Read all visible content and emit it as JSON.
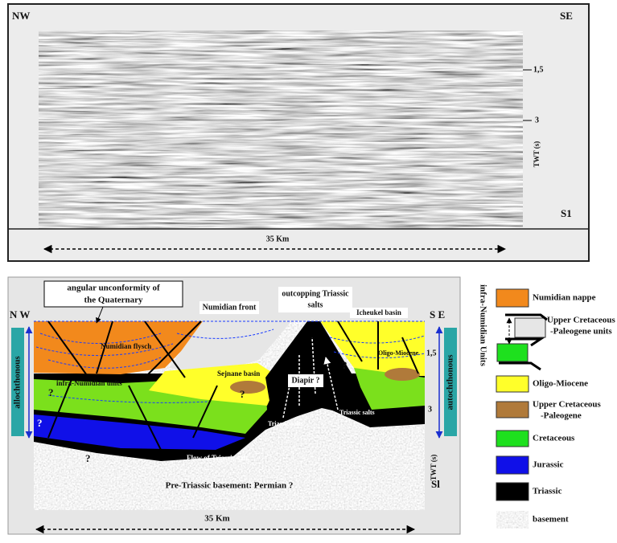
{
  "seismic_section": {
    "left_label": "NW",
    "right_label": "SE",
    "ticks": [
      "1,5",
      "3"
    ],
    "axis_label": "TWT (s)",
    "line_label": "S1",
    "scale_label": "35 Km"
  },
  "interpreted_section": {
    "left_label": "N W",
    "right_label": "S E",
    "ticks": [
      "1,5",
      "3"
    ],
    "axis_label": "TWT (s)",
    "line_label": "Sl",
    "scale_label": "35 Km",
    "left_bracket": "allochthonous",
    "right_bracket": "autochthonous",
    "callouts": [
      {
        "lines": [
          "angular unconformity of",
          "the Quaternary"
        ]
      },
      {
        "lines": [
          "Numidian front"
        ]
      },
      {
        "lines": [
          "outcopping Triassic",
          "salts"
        ]
      },
      {
        "lines": [
          "Icheukel basin"
        ]
      }
    ],
    "labels": [
      "Numidian flysch",
      "infra-Numidian units",
      "Sejnane basin",
      "Diapir ?",
      "Oligo-Miocene",
      "Triassic salts",
      "Triassic salts",
      "Flow of Triassic salt",
      "Pre-Triassic basement: Permian ?"
    ],
    "question_marks": [
      "?",
      "?",
      "?",
      "?",
      "?"
    ]
  },
  "legend": {
    "bracket_label": "infra-Numidian Units",
    "items": [
      {
        "lines": [
          "Numidian nappe"
        ]
      },
      {
        "lines": [
          "Upper Cretaceous",
          "-Paleogene units"
        ]
      },
      {
        "lines": [
          "Oligo-Miocene"
        ]
      },
      {
        "lines": [
          "Upper Cretaceous",
          "-Paleogene"
        ]
      },
      {
        "lines": [
          "Cretaceous"
        ]
      },
      {
        "lines": [
          "Jurassic"
        ]
      },
      {
        "lines": [
          "Triassic"
        ]
      },
      {
        "lines": [
          "basement"
        ]
      }
    ]
  }
}
